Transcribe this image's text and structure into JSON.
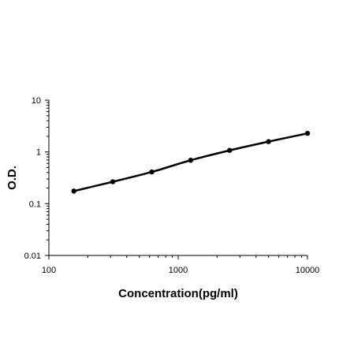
{
  "chart_data": {
    "type": "line",
    "title": "",
    "xlabel": "Concentration(pg/ml)",
    "ylabel": "O.D.",
    "xscale": "log",
    "yscale": "log",
    "xlim": [
      100,
      10000
    ],
    "ylim": [
      0.01,
      10
    ],
    "grid": false,
    "legend": "none",
    "line_color": "#000000",
    "x_ticks": [
      {
        "value": 100,
        "label": "100"
      },
      {
        "value": 1000,
        "label": "1000"
      },
      {
        "value": 10000,
        "label": "10000"
      }
    ],
    "y_ticks": [
      {
        "value": 0.01,
        "label": "0.01"
      },
      {
        "value": 0.1,
        "label": "0.1"
      },
      {
        "value": 1,
        "label": "1"
      },
      {
        "value": 10,
        "label": "10"
      }
    ],
    "series": [
      {
        "x": [
          156,
          312,
          625,
          1250,
          2500,
          5000,
          10000
        ],
        "y": [
          0.175,
          0.265,
          0.41,
          0.69,
          1.07,
          1.58,
          2.28
        ]
      }
    ]
  }
}
